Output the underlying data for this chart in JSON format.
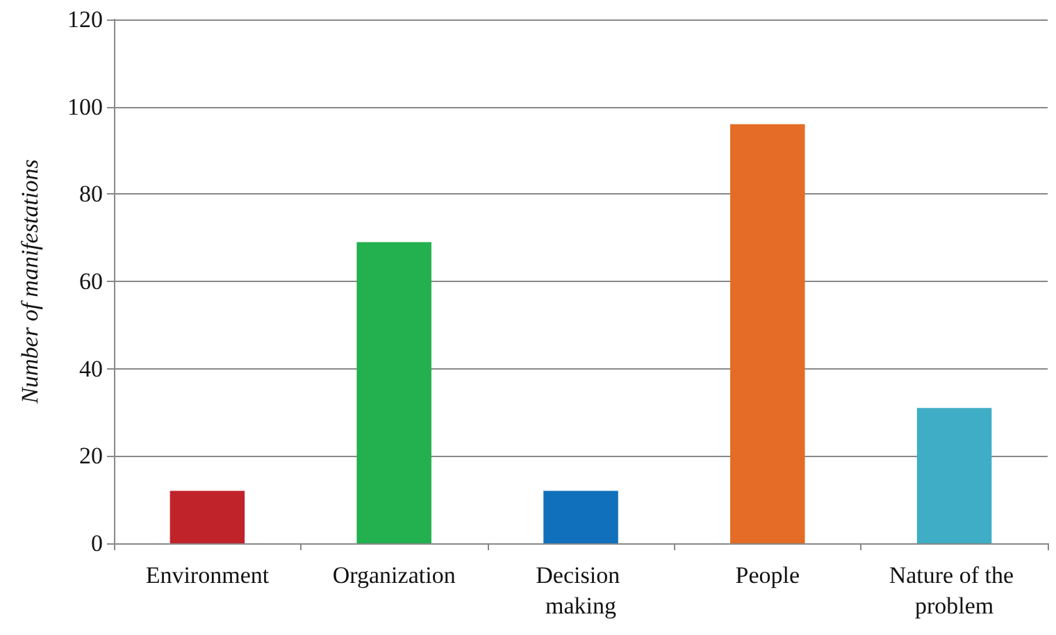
{
  "chart_data": {
    "type": "bar",
    "ylabel": "Number of manifestations",
    "categories": [
      "Environment",
      "Organization",
      "Decision making",
      "People",
      "Nature of the problem"
    ],
    "values": [
      12,
      69,
      12,
      96,
      31
    ],
    "colors": [
      "#c0232a",
      "#23b04f",
      "#1170bb",
      "#e46c26",
      "#3fadc6"
    ],
    "ylim": [
      0,
      120
    ],
    "yticks": [
      0,
      20,
      40,
      60,
      80,
      100,
      120
    ],
    "grid": "y"
  }
}
